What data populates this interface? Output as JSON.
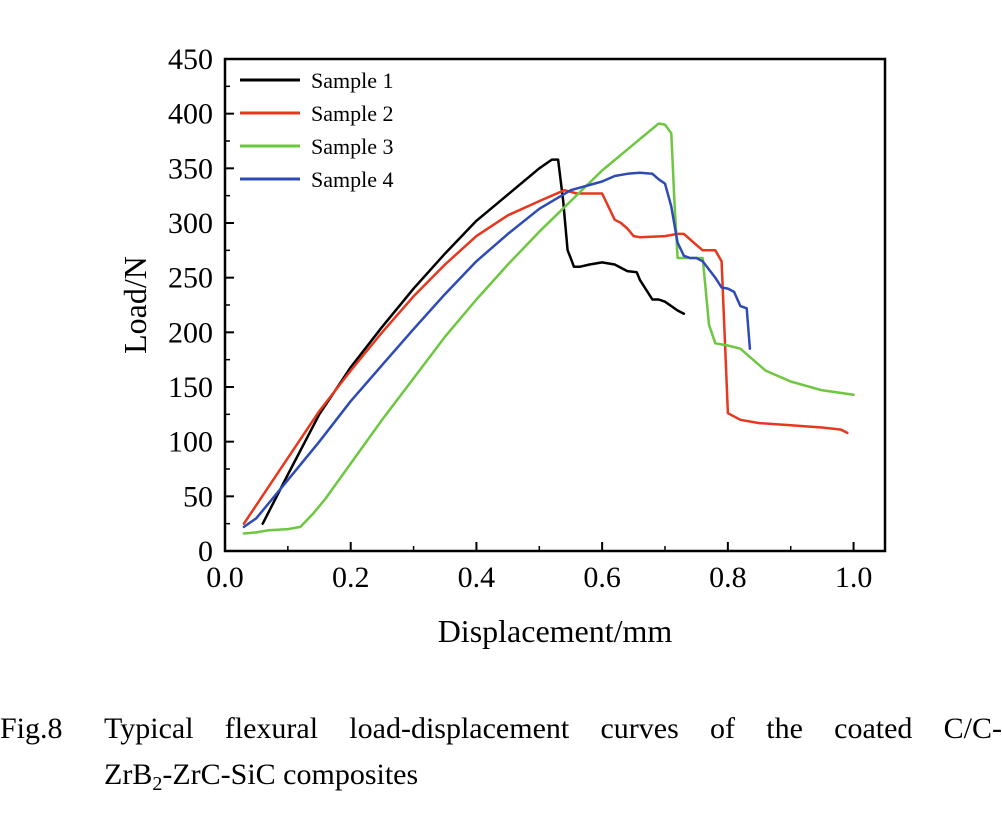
{
  "caption": {
    "number": "Fig.8",
    "line1": "Typical flexural load-displacement curves of the coated C/C-",
    "line2_pre": "ZrB",
    "line2_sub": "2",
    "line2_post": "-ZrC-SiC composites"
  },
  "chart_data": {
    "type": "line",
    "title": "",
    "xlabel": "Displacement/mm",
    "ylabel": "Load/N",
    "xlim": [
      0.0,
      1.05
    ],
    "ylim": [
      0,
      450
    ],
    "xticks": [
      "0.0",
      "0.2",
      "0.4",
      "0.6",
      "0.8",
      "1.0"
    ],
    "xtick_values": [
      0.0,
      0.2,
      0.4,
      0.6,
      0.8,
      1.0
    ],
    "yticks": [
      "0",
      "50",
      "100",
      "150",
      "200",
      "250",
      "300",
      "350",
      "400",
      "450"
    ],
    "ytick_values": [
      0,
      50,
      100,
      150,
      200,
      250,
      300,
      350,
      400,
      450
    ],
    "grid": false,
    "legend_position": "top-left",
    "series": [
      {
        "name": "Sample 1",
        "color": "#000000",
        "x": [
          0.06,
          0.1,
          0.15,
          0.2,
          0.25,
          0.3,
          0.35,
          0.4,
          0.45,
          0.5,
          0.52,
          0.53,
          0.538,
          0.545,
          0.55,
          0.555,
          0.565,
          0.58,
          0.6,
          0.62,
          0.64,
          0.655,
          0.66,
          0.68,
          0.69,
          0.7,
          0.72,
          0.73
        ],
        "y": [
          25,
          70,
          125,
          168,
          205,
          240,
          272,
          302,
          326,
          350,
          358,
          358,
          320,
          275,
          268,
          260,
          260,
          262,
          264,
          262,
          256,
          255,
          248,
          230,
          230,
          228,
          220,
          217
        ]
      },
      {
        "name": "Sample 2",
        "color": "#e8371f",
        "x": [
          0.03,
          0.08,
          0.15,
          0.2,
          0.25,
          0.3,
          0.35,
          0.4,
          0.45,
          0.5,
          0.54,
          0.56,
          0.6,
          0.62,
          0.63,
          0.64,
          0.65,
          0.66,
          0.7,
          0.72,
          0.73,
          0.75,
          0.76,
          0.78,
          0.79,
          0.8,
          0.82,
          0.85,
          0.9,
          0.95,
          0.98,
          0.99
        ],
        "y": [
          25,
          68,
          128,
          165,
          200,
          233,
          262,
          288,
          307,
          320,
          330,
          327,
          327,
          303,
          300,
          295,
          288,
          287,
          288,
          290,
          290,
          280,
          275,
          275,
          265,
          126,
          120,
          117,
          115,
          113,
          111,
          108
        ]
      },
      {
        "name": "Sample 3",
        "color": "#6dc740",
        "x": [
          0.03,
          0.05,
          0.07,
          0.1,
          0.12,
          0.14,
          0.16,
          0.2,
          0.25,
          0.3,
          0.35,
          0.4,
          0.45,
          0.5,
          0.55,
          0.6,
          0.65,
          0.69,
          0.7,
          0.71,
          0.715,
          0.72,
          0.74,
          0.75,
          0.76,
          0.77,
          0.78,
          0.8,
          0.82,
          0.84,
          0.86,
          0.9,
          0.95,
          1.0
        ],
        "y": [
          16,
          17,
          19,
          20,
          22,
          34,
          48,
          80,
          120,
          158,
          196,
          230,
          262,
          292,
          320,
          348,
          372,
          391,
          390,
          382,
          320,
          268,
          268,
          268,
          268,
          207,
          190,
          188,
          185,
          175,
          165,
          155,
          147,
          143
        ]
      },
      {
        "name": "Sample 4",
        "color": "#2e4bb5",
        "x": [
          0.03,
          0.05,
          0.1,
          0.15,
          0.2,
          0.25,
          0.3,
          0.35,
          0.4,
          0.45,
          0.5,
          0.55,
          0.6,
          0.62,
          0.64,
          0.66,
          0.68,
          0.69,
          0.7,
          0.71,
          0.72,
          0.73,
          0.74,
          0.75,
          0.76,
          0.78,
          0.79,
          0.8,
          0.81,
          0.82,
          0.83,
          0.835
        ],
        "y": [
          22,
          30,
          65,
          100,
          137,
          170,
          203,
          235,
          265,
          290,
          313,
          330,
          338,
          343,
          345,
          346,
          345,
          340,
          336,
          315,
          282,
          270,
          268,
          268,
          265,
          250,
          241,
          240,
          237,
          224,
          222,
          185
        ]
      }
    ]
  }
}
